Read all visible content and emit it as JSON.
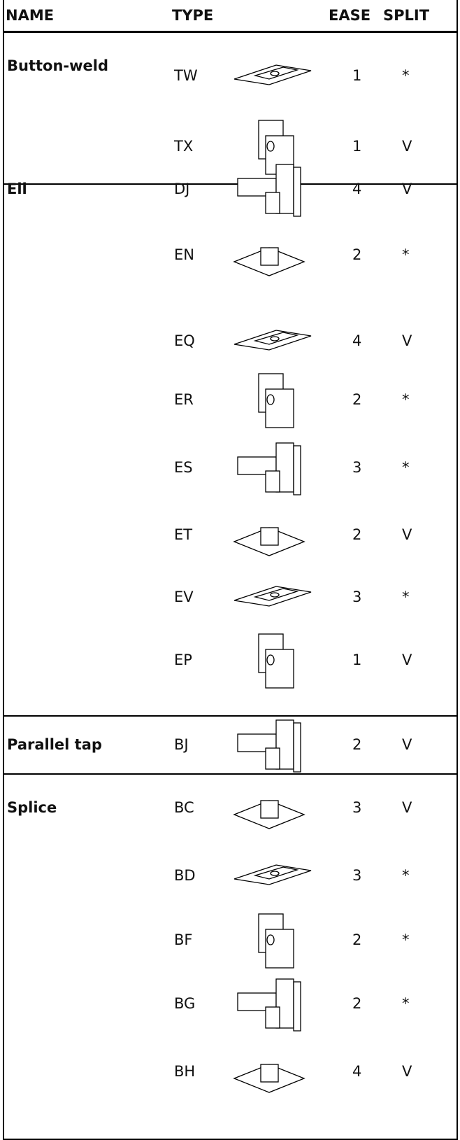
{
  "header": {
    "name": "NAME",
    "type": "TYPE",
    "ease": "EASE",
    "split": "SPLIT"
  },
  "groups": [
    {
      "name": "Button-weld",
      "rows": [
        {
          "type": "TW",
          "ease": "1",
          "split": "*"
        },
        {
          "type": "TX",
          "ease": "1",
          "split": "V"
        }
      ]
    },
    {
      "name": "Ell",
      "rows": [
        {
          "type": "DJ",
          "ease": "4",
          "split": "V"
        },
        {
          "type": "EN",
          "ease": "2",
          "split": "*"
        },
        {
          "type": "EQ",
          "ease": "4",
          "split": "V"
        },
        {
          "type": "ER",
          "ease": "2",
          "split": "*"
        },
        {
          "type": "ES",
          "ease": "3",
          "split": "*"
        },
        {
          "type": "ET",
          "ease": "2",
          "split": "V"
        },
        {
          "type": "EV",
          "ease": "3",
          "split": "*"
        },
        {
          "type": "EP",
          "ease": "1",
          "split": "V"
        }
      ]
    },
    {
      "name": "Parallel tap",
      "rows": [
        {
          "type": "BJ",
          "ease": "2",
          "split": "V"
        }
      ]
    },
    {
      "name": "Splice",
      "rows": [
        {
          "type": "BC",
          "ease": "3",
          "split": "V"
        },
        {
          "type": "BD",
          "ease": "3",
          "split": "*"
        },
        {
          "type": "BF",
          "ease": "2",
          "split": "*"
        },
        {
          "type": "BG",
          "ease": "2",
          "split": "*"
        },
        {
          "type": "BH",
          "ease": "4",
          "split": "V"
        }
      ]
    }
  ]
}
